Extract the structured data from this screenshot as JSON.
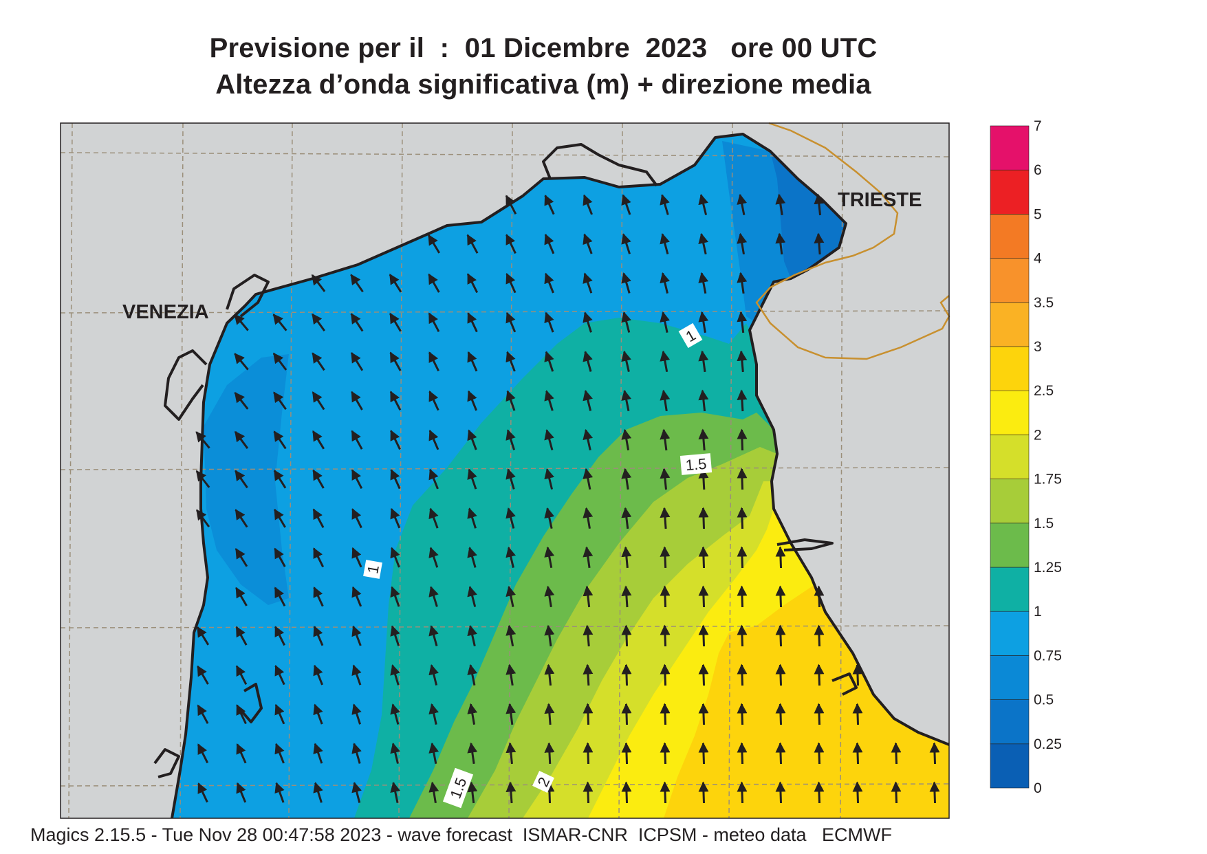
{
  "header": {
    "title_line1": "Previsione per il  :  01 Dicembre  2023   ore 00 UTC",
    "title_line2": "Altezza d’onda significativa (m) + direzione media"
  },
  "footer": {
    "text": "Magics 2.15.5 - Tue Nov 28 00:47:58 2023 - wave forecast  ISMAR-CNR  ICPSM - meteo data   ECMWF"
  },
  "cities": [
    {
      "name": "VENEZIA"
    },
    {
      "name": "TRIESTE"
    }
  ],
  "contour_labels": [
    "1",
    "1.5",
    "1",
    "1.5",
    "2"
  ],
  "colorbar": {
    "bins": [
      {
        "from": "0",
        "to": "0.25",
        "color": "#0a5fb4"
      },
      {
        "from": "0.25",
        "to": "0.5",
        "color": "#0b74c8"
      },
      {
        "from": "0.5",
        "to": "0.75",
        "color": "#0b89d6"
      },
      {
        "from": "0.75",
        "to": "1",
        "color": "#0da0e2"
      },
      {
        "from": "1",
        "to": "1.25",
        "color": "#0fb0a4"
      },
      {
        "from": "1.25",
        "to": "1.5",
        "color": "#6cbb4b"
      },
      {
        "from": "1.5",
        "to": "1.75",
        "color": "#a7cd39"
      },
      {
        "from": "1.75",
        "to": "2",
        "color": "#d5df2a"
      },
      {
        "from": "2",
        "to": "2.5",
        "color": "#fbec10"
      },
      {
        "from": "2.5",
        "to": "3",
        "color": "#fdd40c"
      },
      {
        "from": "3",
        "to": "3.5",
        "color": "#fab224"
      },
      {
        "from": "3.5",
        "to": "4",
        "color": "#f8922b"
      },
      {
        "from": "4",
        "to": "5",
        "color": "#f37a24"
      },
      {
        "from": "5",
        "to": "6",
        "color": "#ec2024"
      },
      {
        "from": "6",
        "to": "7",
        "color": "#e5116a"
      }
    ],
    "tick_labels": [
      "0",
      "0.25",
      "0.5",
      "0.75",
      "1",
      "1.25",
      "1.5",
      "1.75",
      "2",
      "2.5",
      "3",
      "3.5",
      "4",
      "5",
      "6",
      "7"
    ]
  },
  "map_colors": {
    "land": "#d1d3d4",
    "coast": "#231f20",
    "border": "#c8902f",
    "grid": "#9b8f7a"
  }
}
